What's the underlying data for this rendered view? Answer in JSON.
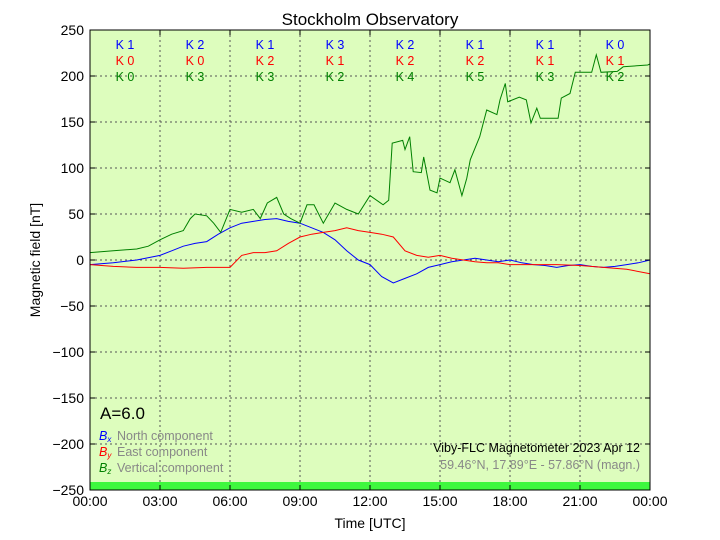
{
  "chart_data": {
    "type": "line",
    "title": "Stockholm Observatory",
    "xlabel": "Time [UTC]",
    "ylabel": "Magnetic field [nT]",
    "xlim": [
      0,
      24
    ],
    "ylim": [
      -250,
      250
    ],
    "x_ticks": [
      "00:00",
      "03:00",
      "06:00",
      "09:00",
      "12:00",
      "15:00",
      "18:00",
      "21:00",
      "00:00"
    ],
    "y_ticks": [
      "250",
      "200",
      "150",
      "100",
      "50",
      "0",
      "−50",
      "−100",
      "−150",
      "−200",
      "−250"
    ],
    "grid": true,
    "background": "#ddfdbd",
    "activity_bar_color": "#3ef83e",
    "k_indices": {
      "x": [
        "K 1",
        "K 2",
        "K 1",
        "K 3",
        "K 2",
        "K 1",
        "K 1",
        "K 0"
      ],
      "y": [
        "K 0",
        "K 0",
        "K 2",
        "K 1",
        "K 2",
        "K 2",
        "K 1",
        "K 1"
      ],
      "z": [
        "K 0",
        "K 3",
        "K 3",
        "K 2",
        "K 4",
        "K 5",
        "K 3",
        "K 2"
      ]
    },
    "a_index": "A=6.0",
    "legend": [
      {
        "symbol": "B",
        "sub": "x",
        "label": "North component",
        "color": "#0000ff"
      },
      {
        "symbol": "B",
        "sub": "y",
        "label": "East component",
        "color": "#ff0000"
      },
      {
        "symbol": "B",
        "sub": "z",
        "label": "Vertical component",
        "color": "#008000"
      }
    ],
    "legend_placement": "bottom-left",
    "instrument": "Viby-FLC Magnetometer 2023 Apr 12",
    "location": "59.46°N, 17.89°E - 57.86°N (magn.)",
    "series": [
      {
        "name": "Bx",
        "color": "#0000ff",
        "x": [
          0,
          1,
          2,
          3,
          3.5,
          4,
          4.5,
          5,
          5.5,
          6,
          6.5,
          7,
          7.5,
          8,
          8.5,
          9,
          9.5,
          10,
          10.5,
          11,
          11.5,
          12,
          12.5,
          13,
          13.5,
          14,
          14.5,
          15,
          15.5,
          16,
          16.5,
          17,
          17.5,
          18,
          18.5,
          19,
          19.5,
          20,
          20.5,
          21,
          21.5,
          22,
          22.5,
          23,
          23.5,
          24
        ],
        "y": [
          -5,
          -3,
          0,
          5,
          10,
          15,
          18,
          20,
          28,
          35,
          40,
          42,
          44,
          45,
          42,
          40,
          35,
          30,
          22,
          10,
          0,
          -5,
          -18,
          -25,
          -20,
          -15,
          -8,
          -5,
          -2,
          0,
          2,
          0,
          -2,
          0,
          -3,
          -5,
          -6,
          -8,
          -6,
          -5,
          -7,
          -8,
          -7,
          -5,
          -3,
          0
        ]
      },
      {
        "name": "By",
        "color": "#ff0000",
        "x": [
          0,
          1,
          2,
          3,
          4,
          5,
          6,
          6.5,
          7,
          7.5,
          8,
          8.5,
          9,
          9.5,
          10,
          10.5,
          11,
          11.5,
          12,
          12.5,
          13,
          13.5,
          14,
          14.5,
          15,
          15.5,
          16,
          16.5,
          17,
          17.5,
          18,
          19,
          20,
          21,
          22,
          23,
          24
        ],
        "y": [
          -5,
          -7,
          -8,
          -8,
          -9,
          -8,
          -8,
          5,
          8,
          8,
          10,
          18,
          25,
          28,
          30,
          32,
          35,
          32,
          30,
          28,
          25,
          10,
          5,
          3,
          5,
          2,
          0,
          -2,
          -3,
          -3,
          -5,
          -5,
          -5,
          -6,
          -8,
          -10,
          -15
        ]
      },
      {
        "name": "Bz",
        "color": "#008000",
        "x": [
          0,
          1,
          2,
          2.5,
          3,
          3.5,
          4,
          4.3,
          4.5,
          5,
          5.3,
          5.6,
          6,
          6.5,
          7,
          7.3,
          7.6,
          8,
          8.3,
          8.6,
          9,
          9.3,
          9.6,
          10,
          10.5,
          11,
          11.5,
          12,
          12.56,
          12.8,
          12.95,
          13.4,
          13.5,
          13.7,
          13.85,
          14.2,
          14.3,
          14.57,
          14.87,
          15,
          15.43,
          15.64,
          15.94,
          16.15,
          16.3,
          16.7,
          17,
          17.44,
          17.57,
          17.8,
          17.9,
          18.4,
          18.7,
          18.9,
          19.15,
          19.3,
          20.06,
          20.2,
          20.57,
          20.8,
          21.5,
          21.7,
          21.9,
          22.6,
          22.85,
          23.9,
          24
        ],
        "y": [
          8,
          10,
          12,
          15,
          22,
          28,
          32,
          45,
          50,
          48,
          40,
          30,
          55,
          52,
          55,
          45,
          62,
          68,
          50,
          45,
          40,
          60,
          60,
          40,
          62,
          55,
          50,
          70,
          60,
          65,
          127,
          130,
          120,
          134,
          96,
          95,
          112,
          76,
          73,
          89,
          84,
          98,
          70,
          89,
          109,
          134,
          163,
          158,
          174,
          192,
          172,
          177,
          174,
          149,
          165,
          154,
          154,
          176,
          181,
          204,
          204,
          223,
          204,
          205,
          210,
          212,
          213
        ]
      }
    ]
  }
}
